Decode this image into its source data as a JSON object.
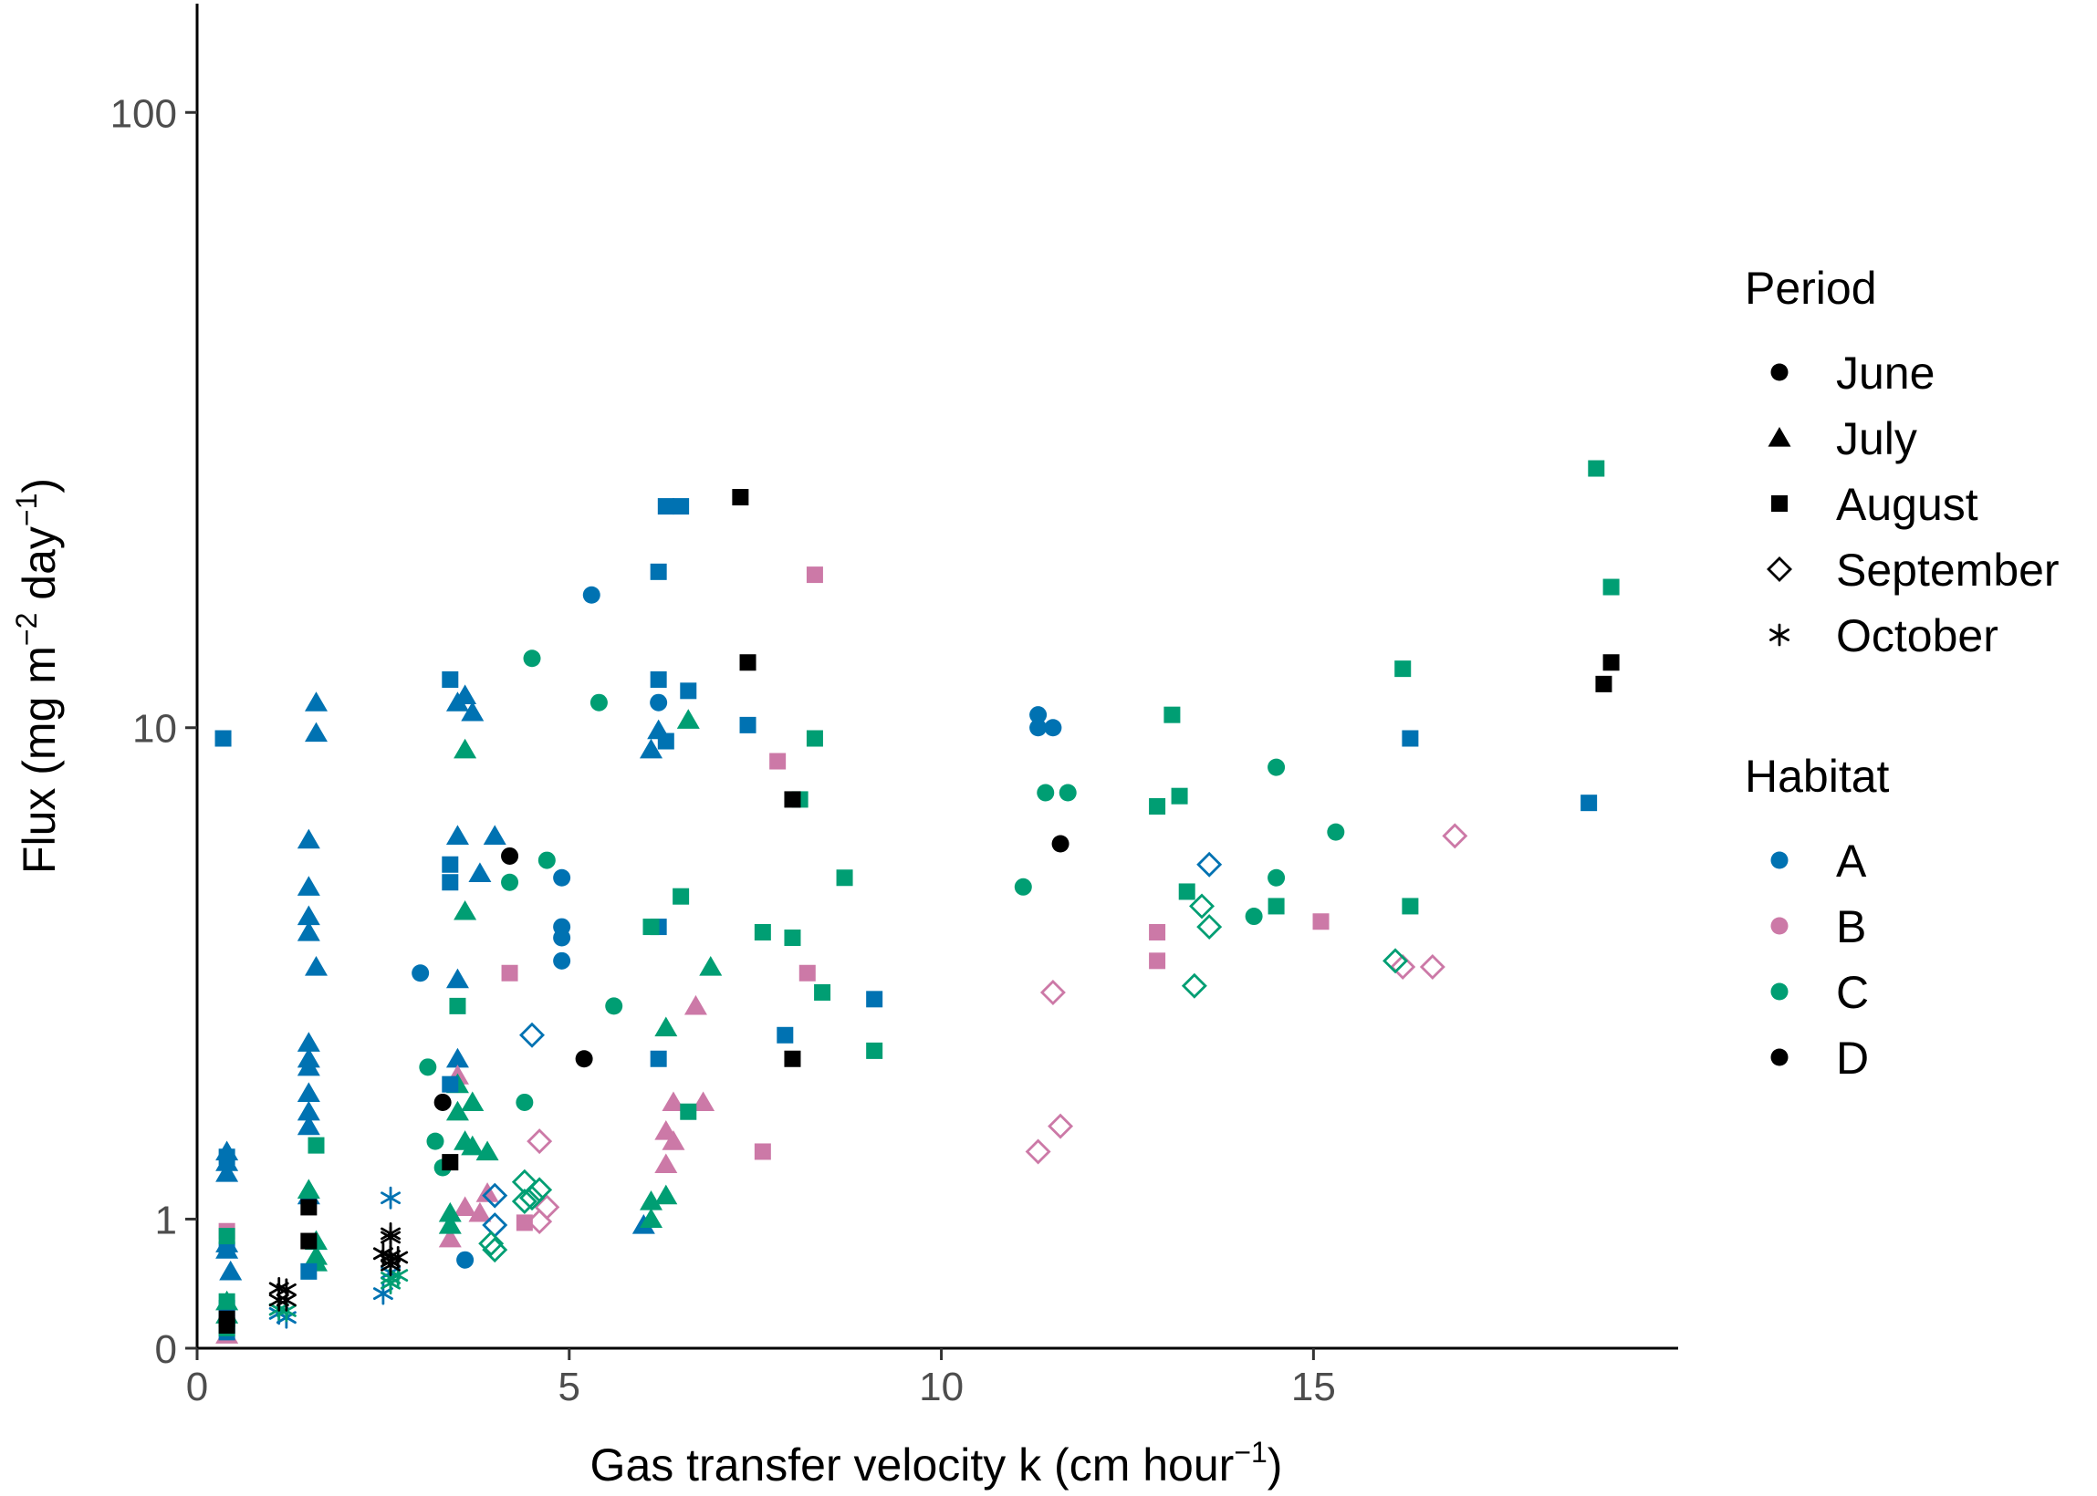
{
  "chart_data": {
    "type": "scatter",
    "xlabel": {
      "main": "Gas transfer velocity k (cm hour",
      "sup": "−1",
      "close": ")"
    },
    "ylabel": {
      "main": "Flux (mg m",
      "sup1": "−2",
      "mid": " day",
      "sup2": "−1",
      "close": ")"
    },
    "x_range": [
      0,
      19.9
    ],
    "y_scale": "pseudo-log",
    "y_range": [
      0,
      150
    ],
    "x_ticks": [
      {
        "value": 0,
        "label": "0"
      },
      {
        "value": 5,
        "label": "5"
      },
      {
        "value": 10,
        "label": "10"
      },
      {
        "value": 15,
        "label": "15"
      }
    ],
    "y_ticks": [
      {
        "value": 0,
        "label": "0"
      },
      {
        "value": 1,
        "label": "1"
      },
      {
        "value": 10,
        "label": "10"
      },
      {
        "value": 100,
        "label": "100"
      }
    ],
    "grid": false,
    "legend_placement": "right",
    "legends": {
      "period": {
        "title": "Period",
        "items": [
          {
            "label": "June",
            "shape": "circle"
          },
          {
            "label": "July",
            "shape": "triangle"
          },
          {
            "label": "August",
            "shape": "square"
          },
          {
            "label": "September",
            "shape": "diamond"
          },
          {
            "label": "October",
            "shape": "asterisk"
          }
        ]
      },
      "habitat": {
        "title": "Habitat",
        "items": [
          {
            "label": "A",
            "color": "#0072B2"
          },
          {
            "label": "B",
            "color": "#CC79A7"
          },
          {
            "label": "C",
            "color": "#009E73"
          },
          {
            "label": "D",
            "color": "#000000"
          }
        ]
      }
    },
    "series": [
      {
        "period": "June",
        "habitat": "A",
        "points": [
          [
            3,
            3.8
          ],
          [
            3.6,
            0.67
          ],
          [
            4.9,
            5.6
          ],
          [
            4.9,
            4.6
          ],
          [
            4.9,
            4.4
          ],
          [
            4.9,
            4.0
          ],
          [
            5.3,
            16.5
          ],
          [
            6.2,
            11
          ],
          [
            11.3,
            10.5
          ],
          [
            11.3,
            10
          ],
          [
            11.5,
            10
          ]
        ]
      },
      {
        "period": "June",
        "habitat": "C",
        "points": [
          [
            3.1,
            2.5
          ],
          [
            3.2,
            1.7
          ],
          [
            3.3,
            1.45
          ],
          [
            4.2,
            5.5
          ],
          [
            4.4,
            2.1
          ],
          [
            4.5,
            13
          ],
          [
            4.7,
            6
          ],
          [
            5.4,
            11
          ],
          [
            5.6,
            3.3
          ],
          [
            11.1,
            5.4
          ],
          [
            11.4,
            7.8
          ],
          [
            11.7,
            7.8
          ],
          [
            14.2,
            4.8
          ],
          [
            14.5,
            8.6
          ],
          [
            14.5,
            5.6
          ],
          [
            15.3,
            6.7
          ]
        ]
      },
      {
        "period": "June",
        "habitat": "D",
        "points": [
          [
            3.3,
            2.1
          ],
          [
            4.2,
            6.1
          ],
          [
            5.2,
            2.6
          ],
          [
            11.6,
            6.4
          ]
        ]
      },
      {
        "period": "July",
        "habitat": "A",
        "points": [
          [
            0.4,
            1.6
          ],
          [
            0.4,
            1.5
          ],
          [
            0.4,
            1.4
          ],
          [
            0.4,
            0.8
          ],
          [
            0.4,
            0.75
          ],
          [
            0.45,
            0.58
          ],
          [
            1.5,
            6.5
          ],
          [
            1.5,
            5.4
          ],
          [
            1.5,
            4.8
          ],
          [
            1.5,
            4.5
          ],
          [
            1.5,
            2.8
          ],
          [
            1.5,
            2.6
          ],
          [
            1.5,
            2.5
          ],
          [
            1.5,
            2.2
          ],
          [
            1.5,
            2.0
          ],
          [
            1.5,
            1.85
          ],
          [
            1.5,
            1.2
          ],
          [
            1.6,
            11
          ],
          [
            1.6,
            9.8
          ],
          [
            1.6,
            3.9
          ],
          [
            3.5,
            11
          ],
          [
            3.5,
            6.6
          ],
          [
            3.5,
            3.7
          ],
          [
            3.5,
            2.6
          ],
          [
            3.6,
            11.3
          ],
          [
            3.7,
            10.6
          ],
          [
            3.8,
            5.7
          ],
          [
            4.0,
            6.6
          ],
          [
            6.0,
            0.95
          ],
          [
            6.1,
            9.2
          ],
          [
            6.2,
            9.9
          ]
        ]
      },
      {
        "period": "July",
        "habitat": "B",
        "points": [
          [
            0.4,
            0.1
          ],
          [
            3.4,
            0.84
          ],
          [
            3.5,
            2.4
          ],
          [
            3.6,
            1.1
          ],
          [
            3.8,
            1.05
          ],
          [
            3.9,
            1.22
          ],
          [
            6.3,
            1.8
          ],
          [
            6.3,
            1.48
          ],
          [
            6.4,
            1.7
          ],
          [
            6.4,
            2.1
          ],
          [
            6.7,
            3.3
          ],
          [
            6.8,
            2.1
          ]
        ]
      },
      {
        "period": "July",
        "habitat": "C",
        "points": [
          [
            0.4,
            0.35
          ],
          [
            0.4,
            0.25
          ],
          [
            1.5,
            1.25
          ],
          [
            1.6,
            0.82
          ],
          [
            1.6,
            0.7
          ],
          [
            1.6,
            0.65
          ],
          [
            3.4,
            1.05
          ],
          [
            3.4,
            0.95
          ],
          [
            3.5,
            2.3
          ],
          [
            3.5,
            2.0
          ],
          [
            3.6,
            9.2
          ],
          [
            3.6,
            4.9
          ],
          [
            3.6,
            1.7
          ],
          [
            3.7,
            2.1
          ],
          [
            3.7,
            1.65
          ],
          [
            3.9,
            1.6
          ],
          [
            6.1,
            1.15
          ],
          [
            6.1,
            1.0
          ],
          [
            6.3,
            1.2
          ],
          [
            6.3,
            3.0
          ],
          [
            6.6,
            10.3
          ],
          [
            6.9,
            3.9
          ]
        ]
      },
      {
        "period": "August",
        "habitat": "A",
        "points": [
          [
            0.35,
            9.6
          ],
          [
            0.4,
            1.55
          ],
          [
            0.4,
            0.75
          ],
          [
            0.4,
            0.3
          ],
          [
            0.4,
            0.18
          ],
          [
            0.4,
            0.12
          ],
          [
            1.5,
            0.58
          ],
          [
            3.4,
            12
          ],
          [
            3.4,
            5.9
          ],
          [
            3.4,
            5.5
          ],
          [
            3.4,
            2.3
          ],
          [
            6.2,
            4.6
          ],
          [
            6.2,
            18
          ],
          [
            6.3,
            23
          ],
          [
            6.2,
            12
          ],
          [
            6.2,
            2.6
          ],
          [
            6.3,
            9.5
          ],
          [
            6.5,
            23
          ],
          [
            6.6,
            11.5
          ],
          [
            7.4,
            10.1
          ],
          [
            7.9,
            2.9
          ],
          [
            9.1,
            3.4
          ],
          [
            16.3,
            9.6
          ],
          [
            18.7,
            7.5
          ]
        ]
      },
      {
        "period": "August",
        "habitat": "B",
        "points": [
          [
            0.4,
            0.9
          ],
          [
            4.2,
            3.8
          ],
          [
            4.4,
            0.97
          ],
          [
            7.6,
            1.6
          ],
          [
            7.8,
            8.8
          ],
          [
            8.2,
            3.8
          ],
          [
            8.3,
            17.8
          ],
          [
            12.9,
            4.5
          ],
          [
            12.9,
            4.0
          ],
          [
            15.1,
            4.7
          ]
        ]
      },
      {
        "period": "August",
        "habitat": "C",
        "points": [
          [
            0.4,
            0.86
          ],
          [
            0.4,
            0.35
          ],
          [
            0.4,
            0.15
          ],
          [
            1.6,
            1.66
          ],
          [
            3.5,
            3.3
          ],
          [
            6.1,
            4.6
          ],
          [
            6.5,
            5.2
          ],
          [
            6.6,
            2.0
          ],
          [
            7.6,
            4.5
          ],
          [
            8.0,
            4.4
          ],
          [
            8.1,
            7.6
          ],
          [
            8.3,
            9.6
          ],
          [
            8.4,
            3.5
          ],
          [
            8.7,
            5.6
          ],
          [
            9.1,
            2.7
          ],
          [
            12.9,
            7.4
          ],
          [
            13.1,
            10.5
          ],
          [
            13.2,
            7.7
          ],
          [
            13.3,
            5.3
          ],
          [
            14.5,
            5.0
          ],
          [
            16.2,
            12.5
          ],
          [
            16.3,
            5.0
          ],
          [
            18.8,
            26.5
          ],
          [
            19.0,
            17
          ]
        ]
      },
      {
        "period": "August",
        "habitat": "D",
        "points": [
          [
            0.4,
            0.22
          ],
          [
            0.4,
            0.17
          ],
          [
            1.5,
            1.1
          ],
          [
            1.5,
            0.82
          ],
          [
            3.4,
            1.5
          ],
          [
            7.3,
            23.8
          ],
          [
            7.4,
            12.8
          ],
          [
            8.0,
            2.6
          ],
          [
            8.0,
            7.6
          ],
          [
            18.9,
            11.8
          ],
          [
            19.0,
            12.8
          ]
        ]
      },
      {
        "period": "September",
        "habitat": "A",
        "points": [
          [
            4.0,
            1.2
          ],
          [
            4.0,
            0.95
          ],
          [
            4.5,
            2.9
          ],
          [
            13.6,
            5.9
          ]
        ]
      },
      {
        "period": "September",
        "habitat": "B",
        "points": [
          [
            4.6,
            1.7
          ],
          [
            4.7,
            1.1
          ],
          [
            4.6,
            0.98
          ],
          [
            11.3,
            1.6
          ],
          [
            11.5,
            3.5
          ],
          [
            11.6,
            1.85
          ],
          [
            16.2,
            3.9
          ],
          [
            16.6,
            3.9
          ],
          [
            16.9,
            6.6
          ]
        ]
      },
      {
        "period": "September",
        "habitat": "C",
        "points": [
          [
            3.95,
            0.8
          ],
          [
            4.0,
            0.75
          ],
          [
            4.4,
            1.32
          ],
          [
            4.4,
            1.15
          ],
          [
            4.5,
            1.18
          ],
          [
            4.6,
            1.25
          ],
          [
            13.4,
            3.6
          ],
          [
            13.5,
            5.0
          ],
          [
            13.6,
            4.6
          ],
          [
            16.1,
            4.0
          ]
        ]
      },
      {
        "period": "October",
        "habitat": "A",
        "points": [
          [
            1.1,
            0.26
          ],
          [
            1.2,
            0.23
          ],
          [
            2.5,
            0.41
          ],
          [
            2.6,
            1.18
          ],
          [
            2.6,
            0.57
          ]
        ]
      },
      {
        "period": "October",
        "habitat": "C",
        "points": [
          [
            1.1,
            0.29
          ],
          [
            1.2,
            0.28
          ],
          [
            2.6,
            0.49
          ],
          [
            2.6,
            0.53
          ],
          [
            2.7,
            0.55
          ]
        ]
      },
      {
        "period": "October",
        "habitat": "D",
        "points": [
          [
            1.1,
            0.45
          ],
          [
            1.2,
            0.44
          ],
          [
            1.1,
            0.36
          ],
          [
            1.2,
            0.36
          ],
          [
            2.5,
            0.72
          ],
          [
            2.6,
            0.88
          ],
          [
            2.6,
            0.85
          ],
          [
            2.6,
            0.7
          ],
          [
            2.6,
            0.66
          ],
          [
            2.6,
            0.63
          ],
          [
            2.7,
            0.69
          ]
        ]
      }
    ]
  }
}
